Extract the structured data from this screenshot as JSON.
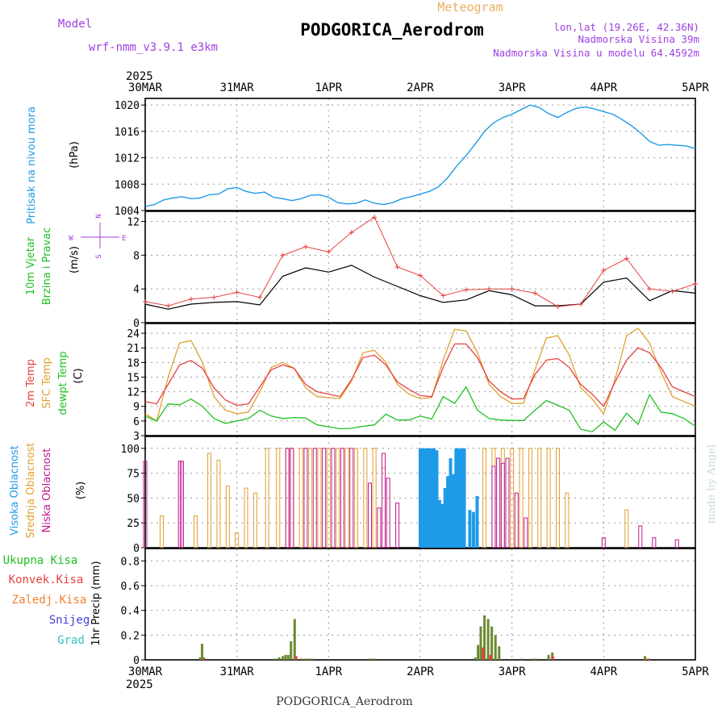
{
  "header": {
    "meteogram_label": "Meteogram",
    "title": "PODGORICA_Aerodrom",
    "model_label": "Model",
    "model_name": "wrf-nmm_v3.9.1  e3km",
    "location_lonlat": "lon,lat (19.26E, 42.36N)",
    "elevation": "Nadmorska Visina 39m",
    "model_elevation": "Nadmorska Visina u modelu 64.4592m",
    "footer_title": "PODGORICA_Aerodrom",
    "credit": "made by Angel"
  },
  "colors": {
    "pressure": "#1e9be8",
    "temp2m": "#e84040",
    "sfc_temp": "#e0a030",
    "dewpt": "#20c020",
    "high_cloud": "#1e9be8",
    "mid_cloud": "#e0a030",
    "low_cloud": "#c01890",
    "precip_total": "#6a8a30",
    "precip_conv": "#e84040",
    "label_purple": "#a040e0",
    "label_orange": "#e8b060",
    "compass": "#a040e0"
  },
  "chart_data": [
    {
      "type": "line",
      "panel": "pressure",
      "ylabel_left": "Pritisak na nivou mora",
      "unit": "(hPa)",
      "ylim": [
        1004,
        1021
      ],
      "yticks": [
        1004,
        1008,
        1012,
        1016,
        1020
      ],
      "series": [
        {
          "name": "Pritisak na nivou mora",
          "x": [
            0,
            0.1,
            0.2,
            0.3,
            0.4,
            0.5,
            0.6,
            0.7,
            0.8,
            0.9,
            1.0,
            1.1,
            1.2,
            1.3,
            1.4,
            1.5,
            1.6,
            1.7,
            1.8,
            1.9,
            2.0,
            2.1,
            2.2,
            2.3,
            2.4,
            2.5,
            2.6,
            2.7,
            2.8,
            2.9,
            3.0,
            3.1,
            3.2,
            3.3,
            3.4,
            3.5,
            3.6,
            3.7,
            3.8,
            3.9,
            4.0,
            4.1,
            4.2,
            4.3,
            4.4,
            4.5,
            4.6,
            4.7,
            4.8,
            4.9,
            5.0,
            5.1,
            5.2,
            5.3,
            5.4,
            5.5,
            5.6,
            5.7,
            5.8,
            5.9,
            6.0
          ],
          "values": [
            1004.6,
            1004.9,
            1005.6,
            1005.9,
            1006.1,
            1005.8,
            1005.9,
            1006.4,
            1006.5,
            1007.3,
            1007.5,
            1006.9,
            1006.6,
            1006.8,
            1006.0,
            1005.8,
            1005.5,
            1005.8,
            1006.3,
            1006.4,
            1006.0,
            1005.2,
            1005.0,
            1005.1,
            1005.6,
            1005.1,
            1004.9,
            1005.2,
            1005.8,
            1006.1,
            1006.5,
            1006.9,
            1007.6,
            1009.0,
            1010.8,
            1012.3,
            1014.1,
            1016.0,
            1017.3,
            1018.1,
            1018.6,
            1019.3,
            1020.0,
            1019.6,
            1018.7,
            1018.1,
            1018.9,
            1019.5,
            1019.7,
            1019.4,
            1019.0,
            1018.6,
            1017.8,
            1016.9,
            1015.8,
            1014.5,
            1013.9,
            1014.0,
            1013.9,
            1013.8,
            1013.4
          ]
        }
      ]
    },
    {
      "type": "line",
      "panel": "wind",
      "ylabel_left": "10m Vjetar",
      "ylabel_left2": "Brzina i Pravac",
      "unit": "(m/s)",
      "ylim": [
        0,
        13.2
      ],
      "yticks": [
        0,
        4,
        8,
        12
      ],
      "compass_labels": {
        "north": "N",
        "south": "S",
        "west": "W",
        "east": "E"
      },
      "series": [
        {
          "name": "wind speed",
          "x": [
            0,
            0.25,
            0.5,
            0.75,
            1.0,
            1.25,
            1.5,
            1.75,
            2.0,
            2.25,
            2.5,
            2.75,
            3.0,
            3.25,
            3.5,
            3.75,
            4.0,
            4.25,
            4.5,
            4.75,
            5.0,
            5.25,
            5.5,
            5.75,
            6.0
          ],
          "values": [
            2.2,
            1.6,
            2.2,
            2.4,
            2.5,
            2.1,
            5.5,
            6.5,
            6.0,
            6.8,
            5.4,
            4.3,
            3.2,
            2.4,
            2.7,
            3.8,
            3.3,
            2.0,
            2.0,
            2.2,
            4.8,
            5.3,
            2.6,
            3.8,
            3.5
          ]
        },
        {
          "name": "wind gust",
          "x": [
            0,
            0.25,
            0.5,
            0.75,
            1.0,
            1.25,
            1.5,
            1.75,
            2.0,
            2.25,
            2.5,
            2.75,
            3.0,
            3.25,
            3.5,
            3.75,
            4.0,
            4.25,
            4.5,
            4.75,
            5.0,
            5.25,
            5.5,
            5.75,
            6.0
          ],
          "values": [
            2.5,
            2.0,
            2.8,
            3.0,
            3.6,
            3.0,
            8.0,
            9.0,
            8.4,
            10.7,
            12.5,
            6.6,
            5.6,
            3.2,
            3.9,
            4.0,
            4.0,
            3.5,
            1.9,
            2.2,
            6.2,
            7.6,
            4.0,
            3.7,
            4.6
          ]
        }
      ]
    },
    {
      "type": "line",
      "panel": "temperature",
      "ylabel_left": "2m Temp",
      "ylabel_left2": "SFC Temp",
      "ylabel_left3": "dewpt Temp",
      "unit": "(C)",
      "ylim": [
        3,
        26
      ],
      "yticks": [
        3,
        6,
        9,
        12,
        15,
        18,
        21,
        24
      ],
      "x": [
        0,
        0.125,
        0.25,
        0.375,
        0.5,
        0.625,
        0.75,
        0.875,
        1.0,
        1.125,
        1.25,
        1.375,
        1.5,
        1.625,
        1.75,
        1.875,
        2.0,
        2.125,
        2.25,
        2.375,
        2.5,
        2.625,
        2.75,
        2.875,
        3.0,
        3.125,
        3.25,
        3.375,
        3.5,
        3.625,
        3.75,
        3.875,
        4.0,
        4.125,
        4.25,
        4.375,
        4.5,
        4.625,
        4.75,
        4.875,
        5.0,
        5.125,
        5.25,
        5.375,
        5.5,
        5.625,
        5.75,
        5.875,
        6.0
      ],
      "series": [
        {
          "name": "2m Temp",
          "values": [
            10,
            9.5,
            13.5,
            17.5,
            18.4,
            16.8,
            12.8,
            10.3,
            9.2,
            9.5,
            13,
            16.5,
            17.5,
            16.8,
            13.5,
            12,
            11.5,
            11,
            14.5,
            19,
            19.5,
            17.5,
            14,
            12.5,
            11.2,
            11,
            17,
            21.8,
            21.8,
            19,
            14.2,
            12,
            10.5,
            10.6,
            15.5,
            18.5,
            18.8,
            17,
            13.5,
            11.5,
            9,
            14,
            18.5,
            21,
            20,
            17,
            13,
            12,
            11
          ]
        },
        {
          "name": "SFC Temp",
          "values": [
            7.5,
            6,
            15,
            22,
            22.5,
            18,
            11,
            8.2,
            7.5,
            7.8,
            12,
            17,
            18,
            16.8,
            12.8,
            11,
            10.8,
            10.6,
            14.2,
            20,
            20.5,
            18,
            13.5,
            11.5,
            10.6,
            10.8,
            18.5,
            24.8,
            24.5,
            20,
            13.5,
            11,
            9.6,
            9.6,
            16.5,
            23,
            23.5,
            19.5,
            12.8,
            10.5,
            7.5,
            14.5,
            23.5,
            25,
            22,
            16,
            11,
            10,
            9
          ]
        },
        {
          "name": "dewpt Temp",
          "values": [
            7,
            6,
            9.5,
            9.3,
            10.5,
            9,
            6.5,
            5.5,
            6,
            6.5,
            8.2,
            7,
            6.5,
            6.7,
            6.6,
            5.2,
            4.8,
            4.4,
            4.5,
            4.9,
            5.2,
            7.4,
            6.2,
            6.2,
            7,
            6.4,
            11,
            9.6,
            13,
            8.2,
            6.5,
            6.2,
            6.1,
            6.1,
            8.2,
            10.2,
            9.2,
            8.2,
            4.3,
            3.8,
            5.8,
            4.1,
            7.6,
            5.3,
            11.4,
            7.8,
            7.5,
            6.5,
            4.9
          ]
        }
      ]
    },
    {
      "type": "bar",
      "panel": "clouds",
      "ylabel_left": "Visoka Oblacnost",
      "ylabel_left2": "Srednja Oblacnost",
      "ylabel_left3": "Niska Oblacnost",
      "unit": "(%)",
      "ylim": [
        0,
        100
      ],
      "yticks": [
        0,
        25,
        50,
        75,
        100
      ],
      "series": [
        {
          "name": "Visoka Oblacnost",
          "x": [
            3.0,
            3.03,
            3.06,
            3.09,
            3.12,
            3.15,
            3.18,
            3.21,
            3.24,
            3.27,
            3.3,
            3.33,
            3.36,
            3.39,
            3.42,
            3.45,
            3.48,
            3.54,
            3.58,
            3.62
          ],
          "values": [
            100,
            100,
            100,
            100,
            100,
            100,
            98,
            48,
            44,
            60,
            72,
            90,
            74,
            100,
            100,
            100,
            100,
            38,
            36,
            52
          ]
        },
        {
          "name": "Srednja Oblacnost",
          "x": [
            0.18,
            0.55,
            0.7,
            0.8,
            0.9,
            1.0,
            1.1,
            1.2,
            1.33,
            1.45,
            1.55,
            1.6,
            1.7,
            1.8,
            1.9,
            2.0,
            2.1,
            2.2,
            2.3,
            2.4,
            2.5,
            2.6,
            3.7,
            3.8,
            3.9,
            4.0,
            4.1,
            4.2,
            4.3,
            4.4,
            4.5,
            4.6,
            5.25,
            6.0
          ],
          "values": [
            32,
            32,
            95,
            88,
            62,
            15,
            60,
            55,
            100,
            100,
            100,
            100,
            100,
            100,
            100,
            100,
            100,
            100,
            100,
            100,
            100,
            80,
            100,
            100,
            100,
            100,
            100,
            100,
            100,
            100,
            100,
            55,
            38,
            0
          ]
        },
        {
          "name": "Niska Oblacnost",
          "x": [
            0.0,
            0.38,
            0.4,
            1.55,
            1.6,
            1.75,
            1.85,
            1.95,
            2.05,
            2.15,
            2.25,
            2.45,
            2.55,
            2.6,
            2.65,
            2.75,
            3.8,
            3.85,
            3.9,
            3.95,
            4.05,
            4.15,
            5.0,
            5.4,
            5.55,
            5.8
          ],
          "values": [
            87,
            87,
            87,
            100,
            100,
            100,
            100,
            100,
            100,
            100,
            100,
            65,
            40,
            95,
            70,
            45,
            82,
            90,
            85,
            90,
            55,
            30,
            10,
            22,
            10,
            8
          ]
        }
      ]
    },
    {
      "type": "bar",
      "panel": "precipitation",
      "ylabel_left": "1hr Precip (mm)",
      "legend": [
        "Ukupna Kisa",
        "Konvek.Kisa",
        "Zaledj.Kisa",
        "Snijeg",
        "Grad"
      ],
      "ylim": [
        0,
        0.9
      ],
      "yticks": [
        0,
        0.2,
        0.4,
        0.6,
        0.8
      ],
      "yticklabels": [
        "0",
        "0.2",
        "0.4",
        "0.6",
        "0.8"
      ],
      "series": [
        {
          "name": "Ukupna Kisa",
          "x": [
            0.6,
            0.62,
            0.64,
            1.42,
            1.46,
            1.5,
            1.53,
            1.56,
            1.59,
            1.63,
            1.7,
            1.74,
            1.78,
            1.82,
            2.45,
            2.5,
            3.6,
            3.63,
            3.66,
            3.7,
            3.74,
            3.78,
            3.82,
            3.86,
            4.1,
            4.22,
            4.26,
            4.4,
            4.44,
            5.45,
            5.48
          ],
          "values": [
            0.02,
            0.13,
            0.02,
            0.01,
            0.02,
            0.03,
            0.04,
            0.04,
            0.15,
            0.33,
            0.01,
            0.01,
            0.01,
            0.01,
            0.01,
            0.01,
            0.02,
            0.12,
            0.27,
            0.36,
            0.33,
            0.27,
            0.2,
            0.11,
            0.01,
            0.01,
            0.01,
            0.04,
            0.06,
            0.03,
            0.01
          ]
        },
        {
          "name": "Konvek.Kisa",
          "x": [
            0.62,
            1.62,
            3.66,
            3.74,
            4.42,
            5.47
          ],
          "values": [
            0.01,
            0.03,
            0.1,
            0.04,
            0.03,
            0.01
          ]
        }
      ]
    }
  ],
  "time_axis": {
    "ticks": [
      0,
      1,
      2,
      3,
      4,
      5,
      6
    ],
    "labels": [
      "30MAR",
      "31MAR",
      "1APR",
      "2APR",
      "3APR",
      "4APR",
      "5APR"
    ],
    "year": "2025"
  }
}
